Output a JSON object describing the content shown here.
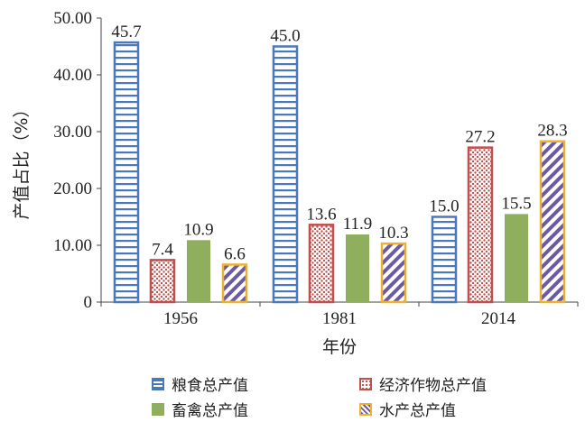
{
  "chart_data": {
    "type": "bar",
    "categories": [
      "1956",
      "1981",
      "2014"
    ],
    "series": [
      {
        "name": "粮食总产值",
        "values": [
          45.7,
          45.0,
          15.0
        ],
        "labels": [
          "45.7",
          "45.0",
          "15.0"
        ],
        "color": "#4a78b8",
        "pattern": "hlines"
      },
      {
        "name": "经济作物总产值",
        "values": [
          7.4,
          13.6,
          27.2
        ],
        "labels": [
          "7.4",
          "13.6",
          "27.2"
        ],
        "color": "#c0504d",
        "pattern": "dots"
      },
      {
        "name": "畜禽总产值",
        "values": [
          10.9,
          11.9,
          15.5
        ],
        "labels": [
          "10.9",
          "11.9",
          "15.5"
        ],
        "color": "#8fae5e",
        "pattern": "solid"
      },
      {
        "name": "水产总产值",
        "values": [
          6.6,
          10.3,
          28.3
        ],
        "labels": [
          "6.6",
          "10.3",
          "28.3"
        ],
        "color": "#f0b131",
        "pattern": "diagonal"
      }
    ],
    "xlabel": "年份",
    "ylabel": "产值占比（%）",
    "ylim": [
      0,
      50
    ],
    "yticks": [
      0,
      10,
      20,
      30,
      40,
      50
    ],
    "ytick_labels": [
      "0",
      "10.00",
      "20.00",
      "30.00",
      "40.00",
      "50.00"
    ],
    "grid": false,
    "legend": "bottom"
  }
}
